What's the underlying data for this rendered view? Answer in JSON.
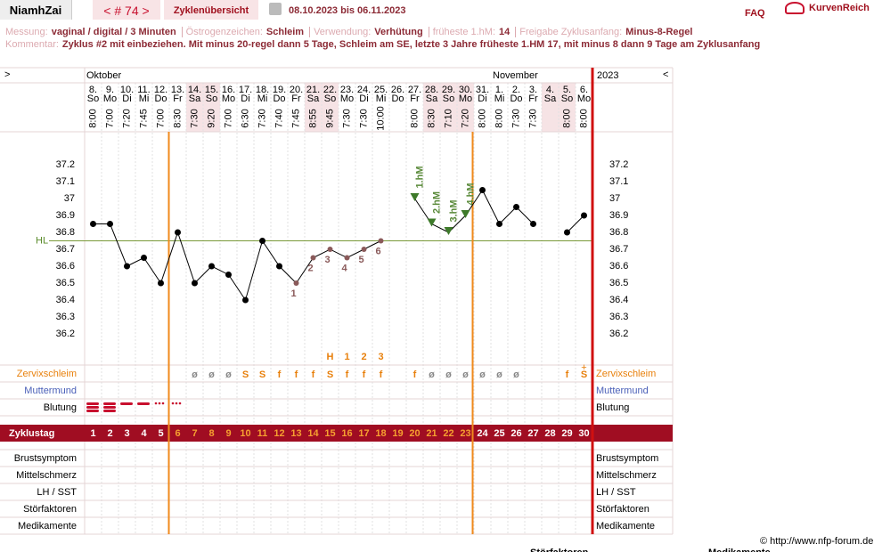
{
  "header": {
    "user": "NiamhZai",
    "cycle_nav": "< # 74 >",
    "overview": "Zyklenübersicht",
    "period": "08.10.2023 bis 06.11.2023",
    "faq": "FAQ",
    "brand": "KurvenReich"
  },
  "info": {
    "items": [
      {
        "label": "Messung:",
        "value": "vaginal / digital / 3 Minuten"
      },
      {
        "label": "Östrogenzeichen:",
        "value": "Schleim"
      },
      {
        "label": "Verwendung:",
        "value": "Verhütung"
      },
      {
        "label": "früheste 1.hM:",
        "value": "14"
      },
      {
        "label": "Freigabe Zyklusanfang:",
        "value": "Minus-8-Regel"
      }
    ],
    "comment_label": "Kommentar:",
    "comment": "Zyklus #2  mit einbeziehen. Mit minus 20-regel dann 5 Tage,  Schleim am SE, letzte 3 Jahre früheste 1.HM 17, mit minus 8 dann 9 Tage am Zyklusanfang"
  },
  "chart_data": {
    "type": "line",
    "nav_prev": ">",
    "nav_next": "<",
    "year": "2023",
    "month_labels": [
      "Oktober",
      null,
      null,
      null,
      null,
      null,
      null,
      null,
      null,
      null,
      null,
      null,
      null,
      null,
      null,
      null,
      null,
      null,
      null,
      null,
      null,
      null,
      null,
      null,
      "November",
      null,
      null,
      null,
      null,
      null
    ],
    "dates": [
      "8.",
      "9.",
      "10.",
      "11.",
      "12.",
      "13.",
      "14.",
      "15.",
      "16.",
      "17.",
      "18.",
      "19.",
      "20.",
      "21.",
      "22.",
      "23.",
      "24.",
      "25.",
      "26.",
      "27.",
      "28.",
      "29.",
      "30.",
      "31.",
      "1.",
      "2.",
      "3.",
      "4.",
      "5.",
      "6."
    ],
    "weekdays": [
      "So",
      "Mo",
      "Di",
      "Mi",
      "Do",
      "Fr",
      "Sa",
      "So",
      "Mo",
      "Di",
      "Mi",
      "Do",
      "Fr",
      "Sa",
      "So",
      "Mo",
      "Di",
      "Mi",
      "Do",
      "Fr",
      "Sa",
      "So",
      "Mo",
      "Di",
      "Mi",
      "Do",
      "Fr",
      "Sa",
      "So",
      "Mo"
    ],
    "weekend": [
      false,
      false,
      false,
      false,
      false,
      false,
      true,
      true,
      false,
      false,
      false,
      false,
      false,
      true,
      true,
      false,
      false,
      false,
      false,
      false,
      true,
      true,
      true,
      false,
      false,
      false,
      false,
      true,
      true,
      false
    ],
    "times": [
      "8:00",
      "7:00",
      "7:20",
      "7:45",
      "7:00",
      "8:30",
      "7:30",
      "9:20",
      "7:00",
      "6:30",
      "7:30",
      "7:40",
      "7:45",
      "8:55",
      "9:45",
      "7:30",
      "7:30",
      "10:00",
      null,
      "8:00",
      "8:30",
      "7:10",
      "7:20",
      "8:00",
      "8:00",
      "7:30",
      "7:30",
      null,
      "8:00",
      "8:00"
    ],
    "x": [
      1,
      2,
      3,
      4,
      5,
      6,
      7,
      8,
      9,
      10,
      11,
      12,
      13,
      14,
      15,
      16,
      17,
      18,
      19,
      20,
      21,
      22,
      23,
      24,
      25,
      26,
      27,
      28,
      29,
      30
    ],
    "values": [
      36.85,
      36.85,
      36.6,
      36.65,
      36.5,
      36.8,
      36.5,
      36.6,
      36.55,
      36.4,
      36.75,
      36.6,
      36.5,
      36.65,
      36.7,
      36.65,
      36.7,
      36.75,
      null,
      37.0,
      36.85,
      36.8,
      36.9,
      37.05,
      36.85,
      36.95,
      36.85,
      null,
      36.8,
      36.9
    ],
    "color": "#000000",
    "point_labels": [
      null,
      null,
      null,
      null,
      null,
      null,
      null,
      null,
      null,
      null,
      null,
      null,
      "1",
      "2",
      "3",
      "4",
      "5",
      "6",
      null,
      null,
      null,
      null,
      null,
      null,
      null,
      null,
      null,
      null,
      null,
      null
    ],
    "hm_labels": [
      null,
      null,
      null,
      null,
      null,
      null,
      null,
      null,
      null,
      null,
      null,
      null,
      null,
      null,
      null,
      null,
      null,
      null,
      null,
      "1.hM",
      "2.hM",
      "3.hM",
      "4.hM",
      null,
      null,
      null,
      null,
      null,
      null,
      null
    ],
    "ylim": [
      36.0,
      37.4
    ],
    "yticks": [
      37.2,
      37.1,
      37,
      36.9,
      36.8,
      36.7,
      36.6,
      36.5,
      36.4,
      36.3,
      36.2
    ],
    "grid": false,
    "coverline": 36.75,
    "coverline_label": "HL",
    "peak_labels": [
      null,
      null,
      null,
      null,
      null,
      null,
      null,
      null,
      null,
      null,
      null,
      null,
      null,
      null,
      "H",
      "1",
      "2",
      "3",
      null,
      null,
      null,
      null,
      null,
      null,
      null,
      null,
      null,
      null,
      null,
      null
    ],
    "mucus": [
      null,
      null,
      null,
      null,
      null,
      null,
      "ø",
      "ø",
      "ø",
      "S",
      "S",
      "f",
      "f",
      "f",
      "S",
      "f",
      "f",
      "f",
      null,
      "f",
      "ø",
      "ø",
      "ø",
      "ø",
      "ø",
      "ø",
      null,
      null,
      "f",
      "S"
    ],
    "mucus_plus": [
      null,
      null,
      null,
      null,
      null,
      null,
      null,
      null,
      null,
      null,
      null,
      null,
      null,
      null,
      null,
      null,
      null,
      null,
      null,
      null,
      null,
      null,
      null,
      null,
      null,
      null,
      null,
      null,
      null,
      "+"
    ],
    "cycle_day_highlight": [
      false,
      false,
      false,
      false,
      false,
      true,
      true,
      true,
      true,
      true,
      true,
      true,
      true,
      true,
      true,
      true,
      true,
      true,
      true,
      true,
      true,
      true,
      true,
      false,
      false,
      false,
      false,
      false,
      false,
      false
    ],
    "row_labels": {
      "mucus": "Zervixschleim",
      "cervix": "Muttermund",
      "bleeding": "Blutung",
      "cycle_day": "Zyklustag",
      "breast": "Brustsymptom",
      "midpain": "Mittelschmerz",
      "lh": "LH / SST",
      "disturb": "Störfaktoren",
      "meds": "Medikamente"
    }
  },
  "footer": {
    "copyright": "© http://www.nfp-forum.de",
    "partial": [
      "Störfaktoren",
      "Medikamente"
    ]
  }
}
